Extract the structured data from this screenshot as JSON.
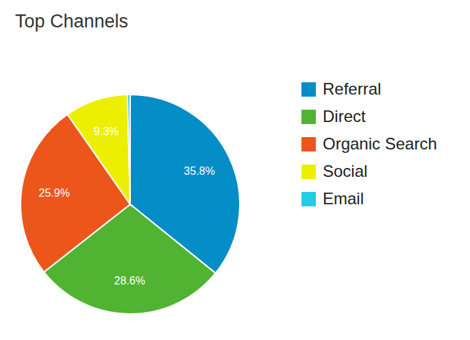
{
  "chart_data": {
    "type": "pie",
    "title": "Top Channels",
    "categories": [
      "Referral",
      "Direct",
      "Organic Search",
      "Social",
      "Email"
    ],
    "values": [
      35.8,
      28.6,
      25.9,
      9.3,
      0.4
    ],
    "value_labels": [
      "35.8%",
      "28.6%",
      "25.9%",
      "9.3%",
      null
    ],
    "colors": [
      "#058dc7",
      "#50b432",
      "#ed561b",
      "#edef00",
      "#24cbe5"
    ],
    "data_labels": true,
    "legend": "right"
  }
}
